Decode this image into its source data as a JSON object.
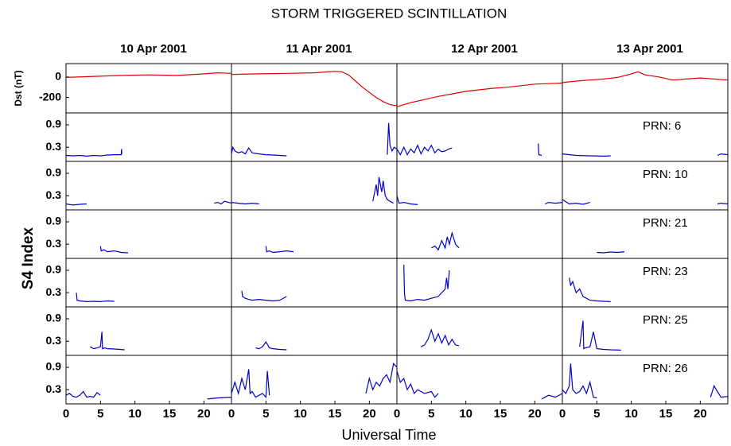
{
  "chart_data": {
    "type": "line",
    "title": "STORM TRIGGERED SCINTILLATION",
    "days": [
      "10 Apr 2001",
      "11 Apr 2001",
      "12 Apr 2001",
      "13 Apr 2001"
    ],
    "xlabel": "Universal Time",
    "xlim": [
      0,
      24
    ],
    "xticks": [
      0,
      5,
      10,
      15,
      20
    ],
    "dst": {
      "ylabel": "Dst (nT)",
      "color": "#dd0000",
      "ylim": [
        -350,
        130
      ],
      "yticks": [
        0,
        -200
      ],
      "days": [
        {
          "x": [
            0,
            4,
            8,
            12,
            16,
            20,
            22,
            24
          ],
          "values": [
            -5,
            5,
            15,
            20,
            15,
            30,
            40,
            35
          ]
        },
        {
          "x": [
            0,
            4,
            8,
            12,
            15,
            16,
            17,
            18,
            19,
            20,
            21,
            22,
            23,
            24
          ],
          "values": [
            25,
            30,
            35,
            40,
            55,
            50,
            20,
            -40,
            -100,
            -150,
            -200,
            -240,
            -270,
            -280
          ]
        },
        {
          "x": [
            0,
            1,
            2,
            4,
            6,
            8,
            10,
            12,
            14,
            16,
            18,
            20,
            22,
            24
          ],
          "values": [
            -290,
            -270,
            -250,
            -220,
            -190,
            -165,
            -140,
            -125,
            -110,
            -100,
            -85,
            -70,
            -65,
            -60
          ]
        },
        {
          "x": [
            0,
            2,
            4,
            6,
            8,
            10,
            11,
            12,
            14,
            16,
            18,
            20,
            22,
            24
          ],
          "values": [
            -55,
            -40,
            -30,
            -20,
            -5,
            30,
            50,
            20,
            0,
            -30,
            -20,
            -10,
            -20,
            -30
          ]
        }
      ]
    },
    "s4": {
      "ylabel": "S4 Index",
      "color": "#0000cc",
      "ylim": [
        -0.08,
        1.22
      ],
      "yticks": [
        0.3,
        0.9
      ],
      "panels": [
        {
          "name": "PRN:  6",
          "days": [
            {
              "x": [
                0,
                1,
                2,
                3,
                4,
                5,
                6,
                7,
                8,
                8.05,
                8.1
              ],
              "values": [
                0.08,
                0.07,
                0.08,
                0.06,
                0.08,
                0.07,
                0.09,
                0.1,
                0.1,
                0.25,
                0.12
              ]
            },
            {
              "x": [
                0,
                0.2,
                0.5,
                1,
                1.5,
                2,
                2.5,
                3,
                4,
                5,
                6,
                7,
                8,
                15,
                22.6,
                22.8,
                23,
                23.3,
                23.6,
                24
              ],
              "values": [
                0.12,
                0.3,
                0.2,
                0.15,
                0.18,
                0.12,
                0.28,
                0.15,
                0.12,
                0.1,
                0.09,
                0.08,
                0.07,
                null,
                0.1,
                0.95,
                0.35,
                0.2,
                0.3,
                0.25
              ]
            },
            {
              "x": [
                0,
                0.5,
                1,
                1.5,
                2,
                2.5,
                3,
                3.5,
                4,
                4.5,
                5,
                5.5,
                6,
                6.5,
                7,
                7.5,
                8,
                14,
                20.5,
                20.6,
                21
              ],
              "values": [
                0.25,
                0.1,
                0.3,
                0.1,
                0.25,
                0.15,
                0.35,
                0.12,
                0.3,
                0.2,
                0.35,
                0.15,
                0.25,
                0.18,
                0.2,
                0.25,
                0.28,
                null,
                0.4,
                0.1,
                0.08
              ]
            },
            {
              "x": [
                0,
                2,
                4,
                6,
                7,
                15,
                22.5,
                23,
                24
              ],
              "values": [
                0.12,
                0.08,
                0.07,
                0.06,
                0.07,
                null,
                0.08,
                0.12,
                0.1
              ]
            }
          ]
        },
        {
          "name": "PRN: 10",
          "days": [
            {
              "x": [
                0,
                1,
                2,
                3,
                12,
                21.5,
                22,
                22.5,
                23,
                24
              ],
              "values": [
                0.08,
                0.05,
                0.07,
                0.08,
                null,
                0.1,
                0.12,
                0.08,
                0.15,
                0.1
              ]
            },
            {
              "x": [
                0,
                1,
                2,
                3,
                4,
                10,
                20.5,
                21,
                21.2,
                21.4,
                21.8,
                22,
                22.3,
                22.6,
                23,
                23.5
              ],
              "values": [
                0.12,
                0.1,
                0.08,
                0.1,
                0.08,
                null,
                0.15,
                0.6,
                0.3,
                0.8,
                0.4,
                0.7,
                0.3,
                0.2,
                0.15,
                0.1
              ]
            },
            {
              "x": [
                0,
                0.3,
                1,
                2,
                3,
                12,
                21.5,
                22,
                23,
                24
              ],
              "values": [
                0.3,
                0.1,
                0.12,
                0.08,
                0.06,
                null,
                0.08,
                0.12,
                0.1,
                0.12
              ]
            },
            {
              "x": [
                0,
                1,
                2,
                3,
                4,
                12,
                22.5,
                23,
                24
              ],
              "values": [
                0.2,
                0.08,
                0.1,
                0.07,
                0.12,
                null,
                0.08,
                0.1,
                0.08
              ]
            }
          ]
        },
        {
          "name": "PRN: 21",
          "days": [
            {
              "x": [
                5,
                5.1,
                5.5,
                6,
                7,
                8,
                9
              ],
              "values": [
                0.25,
                0.12,
                0.15,
                0.1,
                0.12,
                0.08,
                0.07
              ]
            },
            {
              "x": [
                5,
                5.1,
                5.5,
                6,
                7,
                8,
                9
              ],
              "values": [
                0.25,
                0.1,
                0.12,
                0.08,
                0.1,
                0.12,
                0.1
              ]
            },
            {
              "x": [
                5,
                5.5,
                6,
                6.5,
                7,
                7.3,
                7.6,
                8,
                8.5,
                9
              ],
              "values": [
                0.2,
                0.25,
                0.15,
                0.4,
                0.2,
                0.5,
                0.3,
                0.6,
                0.3,
                0.2
              ]
            },
            {
              "x": [
                5,
                6,
                7,
                8,
                9
              ],
              "values": [
                0.08,
                0.07,
                0.09,
                0.08,
                0.1
              ]
            }
          ]
        },
        {
          "name": "PRN: 23",
          "days": [
            {
              "x": [
                1.5,
                1.6,
                2,
                3,
                4,
                5,
                6,
                7
              ],
              "values": [
                0.3,
                0.1,
                0.08,
                0.06,
                0.07,
                0.06,
                0.08,
                0.07
              ]
            },
            {
              "x": [
                1.5,
                1.6,
                2,
                2.5,
                3,
                4,
                5,
                6,
                7,
                8
              ],
              "values": [
                0.35,
                0.2,
                0.15,
                0.12,
                0.1,
                0.12,
                0.1,
                0.08,
                0.1,
                0.2
              ]
            },
            {
              "x": [
                1,
                1.1,
                1.2,
                2,
                3,
                4,
                5,
                6,
                7,
                7.2,
                7.4,
                7.6
              ],
              "values": [
                1.05,
                0.3,
                0.1,
                0.08,
                0.12,
                0.1,
                0.15,
                0.2,
                0.4,
                0.7,
                0.4,
                0.9
              ]
            },
            {
              "x": [
                1,
                1.2,
                1.5,
                2,
                2.5,
                3,
                4,
                5,
                6,
                7
              ],
              "values": [
                0.7,
                0.5,
                0.6,
                0.3,
                0.4,
                0.2,
                0.1,
                0.08,
                0.07,
                0.06
              ]
            }
          ]
        },
        {
          "name": "PRN: 25",
          "days": [
            {
              "x": [
                3.5,
                4,
                4.5,
                5,
                5.2,
                5.3,
                5.6,
                6,
                7,
                8.5
              ],
              "values": [
                0.15,
                0.1,
                0.12,
                0.15,
                0.55,
                0.1,
                0.12,
                0.1,
                0.09,
                0.07
              ]
            },
            {
              "x": [
                3.5,
                4,
                4.5,
                5,
                5.5,
                6,
                7,
                8
              ],
              "values": [
                0.12,
                0.1,
                0.15,
                0.28,
                0.12,
                0.1,
                0.08,
                0.07
              ]
            },
            {
              "x": [
                3.5,
                4,
                4.5,
                5,
                5.5,
                6,
                6.5,
                7,
                7.5,
                8,
                8.5,
                9
              ],
              "values": [
                0.15,
                0.2,
                0.35,
                0.6,
                0.3,
                0.5,
                0.25,
                0.45,
                0.2,
                0.35,
                0.2,
                0.18
              ]
            },
            {
              "x": [
                2.5,
                3,
                3.1,
                3.3,
                4,
                4.5,
                5,
                6,
                7,
                8.5
              ],
              "values": [
                0.15,
                0.85,
                0.1,
                0.12,
                0.15,
                0.55,
                0.1,
                0.08,
                0.07,
                0.06
              ]
            }
          ]
        },
        {
          "name": "PRN: 26",
          "days": [
            {
              "x": [
                0,
                0.5,
                1,
                1.5,
                2,
                2.5,
                3,
                3.5,
                4,
                4.5,
                5,
                12,
                20.5,
                22,
                24
              ],
              "values": [
                0.15,
                0.2,
                0.12,
                0.1,
                0.15,
                0.25,
                0.1,
                0.12,
                0.1,
                0.22,
                0.15,
                null,
                0.05,
                0.08,
                0.1
              ]
            },
            {
              "x": [
                0,
                0.5,
                1,
                1.5,
                2,
                2.5,
                2.7,
                3,
                3.5,
                4,
                4.5,
                5,
                5.2,
                5.5,
                12,
                19.5,
                20,
                20.5,
                21,
                21.5,
                22,
                22.5,
                23,
                23.5,
                24
              ],
              "values": [
                0.2,
                0.5,
                0.2,
                0.6,
                0.3,
                0.85,
                0.2,
                0.25,
                0.1,
                0.15,
                0.2,
                0.1,
                0.8,
                0.15,
                null,
                0.2,
                0.6,
                0.3,
                0.5,
                0.4,
                0.6,
                0.7,
                0.5,
                1.0,
                0.9
              ]
            },
            {
              "x": [
                0,
                0.5,
                1,
                1.5,
                2,
                2.5,
                3,
                4,
                5,
                5.5,
                6,
                12,
                21,
                22,
                23,
                24
              ],
              "values": [
                0.8,
                0.5,
                0.6,
                0.3,
                0.45,
                0.2,
                0.3,
                0.2,
                0.25,
                0.1,
                0.2,
                null,
                0.05,
                0.15,
                0.1,
                0.2
              ]
            },
            {
              "x": [
                0,
                0.5,
                1,
                1.2,
                1.5,
                2,
                2.5,
                3,
                3.5,
                4,
                4.5,
                5,
                12,
                21.5,
                22,
                23,
                24
              ],
              "values": [
                0.3,
                0.2,
                0.4,
                1.0,
                0.3,
                0.2,
                0.25,
                0.4,
                0.2,
                0.5,
                0.1,
                0.08,
                null,
                0.1,
                0.4,
                0.1,
                0.12
              ]
            }
          ]
        }
      ]
    }
  }
}
